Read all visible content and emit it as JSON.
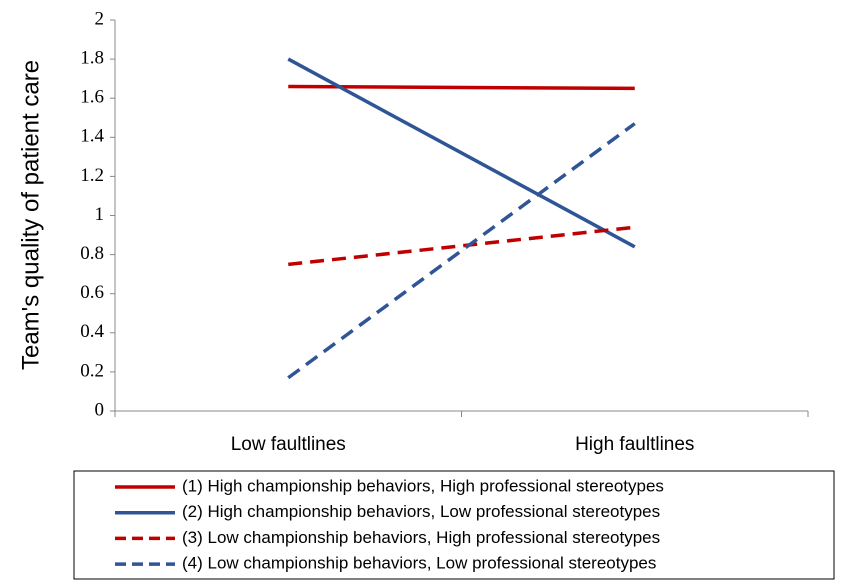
{
  "chart_data": {
    "type": "line",
    "y_label": "Team's quality of patient care",
    "categories": [
      "Low faultlines",
      "High faultlines"
    ],
    "series": [
      {
        "name": "(1) High championship behaviors, High professional stereotypes",
        "color": "#c00000",
        "dashed": false,
        "values": [
          1.66,
          1.65
        ]
      },
      {
        "name": "(2) High championship behaviors, Low professional stereotypes",
        "color": "#2f5597",
        "dashed": false,
        "values": [
          1.8,
          0.84
        ]
      },
      {
        "name": "(3) Low championship behaviors, High professional stereotypes",
        "color": "#c00000",
        "dashed": true,
        "values": [
          0.75,
          0.94
        ]
      },
      {
        "name": "(4) Low championship behaviors, Low professional stereotypes",
        "color": "#2f5597",
        "dashed": true,
        "values": [
          0.17,
          1.47
        ]
      }
    ],
    "ylim": [
      0,
      2
    ],
    "yticks": [
      0,
      0.2,
      0.4,
      0.6,
      0.8,
      1,
      1.2,
      1.4,
      1.6,
      1.8,
      2
    ],
    "grid": false,
    "legend": "bottom"
  }
}
